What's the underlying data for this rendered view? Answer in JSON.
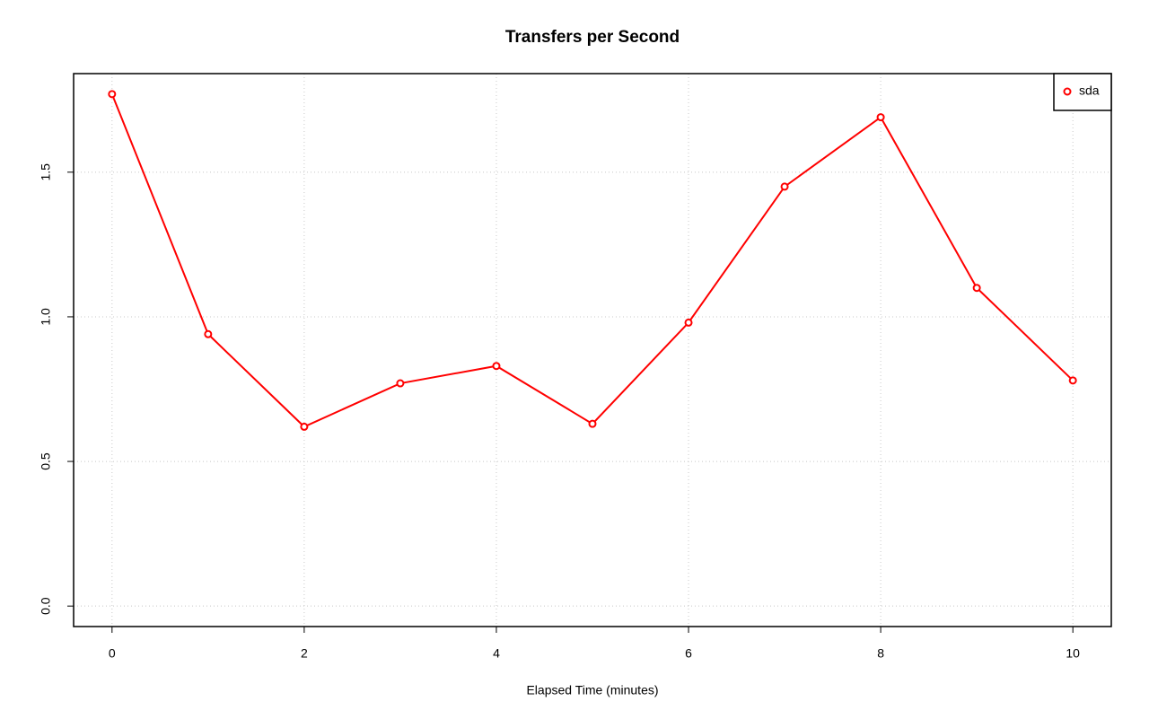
{
  "chart_data": {
    "type": "line",
    "title": "Transfers per Second",
    "xlabel": "Elapsed Time (minutes)",
    "x": [
      0,
      1,
      2,
      3,
      4,
      5,
      6,
      7,
      8,
      9,
      10
    ],
    "series": [
      {
        "name": "sda",
        "color": "#ff0000",
        "values": [
          1.77,
          0.94,
          0.62,
          0.77,
          0.83,
          0.63,
          0.98,
          1.45,
          1.69,
          1.1,
          0.78
        ]
      }
    ],
    "xlim": [
      -0.4,
      10.4
    ],
    "xticks": [
      0,
      2,
      4,
      6,
      8,
      10
    ],
    "ylim": [
      -0.0708,
      1.8408
    ],
    "yticks": [
      {
        "value": 0,
        "label": "0.0"
      },
      0.5,
      {
        "value": 1,
        "label": "1.0"
      },
      1.5
    ],
    "grid": true,
    "legend": "topright"
  }
}
